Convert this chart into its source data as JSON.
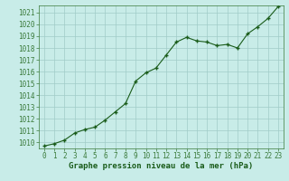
{
  "x": [
    0,
    1,
    2,
    3,
    4,
    5,
    6,
    7,
    8,
    9,
    10,
    11,
    12,
    13,
    14,
    15,
    16,
    17,
    18,
    19,
    20,
    21,
    22,
    23
  ],
  "y": [
    1009.7,
    1009.9,
    1010.2,
    1010.8,
    1011.1,
    1011.3,
    1011.9,
    1012.6,
    1013.3,
    1015.2,
    1015.9,
    1016.3,
    1017.4,
    1018.5,
    1018.9,
    1018.6,
    1018.5,
    1018.2,
    1018.3,
    1018.0,
    1019.2,
    1019.8,
    1020.5,
    1021.5
  ],
  "ylim_min": 1009.5,
  "ylim_max": 1021.6,
  "yticks": [
    1010,
    1011,
    1012,
    1013,
    1014,
    1015,
    1016,
    1017,
    1018,
    1019,
    1020,
    1021
  ],
  "xticks": [
    0,
    1,
    2,
    3,
    4,
    5,
    6,
    7,
    8,
    9,
    10,
    11,
    12,
    13,
    14,
    15,
    16,
    17,
    18,
    19,
    20,
    21,
    22,
    23
  ],
  "line_color": "#1a5c1a",
  "marker_color": "#1a5c1a",
  "bg_color": "#c8ece8",
  "grid_color": "#a0ccc8",
  "xlabel": "Graphe pression niveau de la mer (hPa)",
  "xlabel_color": "#1a5c1a",
  "tick_label_color": "#1a5c1a",
  "spine_color": "#3a7a3a",
  "tick_fontsize": 5.5,
  "xlabel_fontsize": 6.5
}
